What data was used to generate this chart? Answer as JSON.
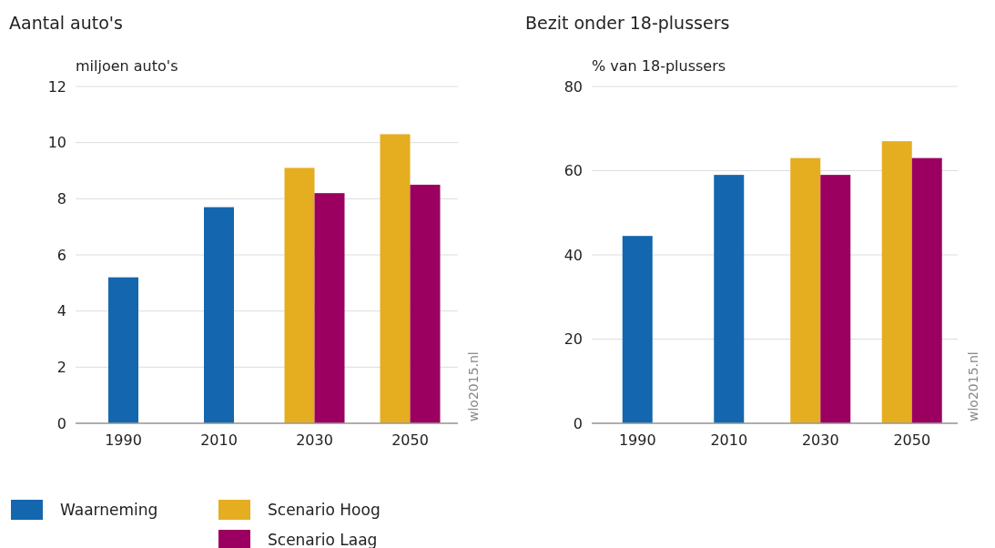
{
  "chart_data": [
    {
      "type": "bar",
      "title": "Aantal auto's",
      "ylabel": "miljoen auto's",
      "categories": [
        "1990",
        "2010",
        "2030",
        "2050"
      ],
      "ylim": [
        0,
        12
      ],
      "yticks": [
        0,
        2,
        4,
        6,
        8,
        10,
        12
      ],
      "grid": "y",
      "legend": "bottom",
      "annotations": [
        "wlo2015.nl"
      ],
      "series": [
        {
          "name": "Waarneming",
          "color": "#1467ae",
          "values": [
            5.2,
            7.7,
            null,
            null
          ]
        },
        {
          "name": "Scenario Hoog",
          "color": "#e5ad20",
          "values": [
            null,
            null,
            9.1,
            10.3
          ]
        },
        {
          "name": "Scenario Laag",
          "color": "#9b0061",
          "values": [
            null,
            null,
            8.2,
            8.5
          ]
        }
      ]
    },
    {
      "type": "bar",
      "title": "Bezit onder 18-plussers",
      "ylabel": "% van 18-plussers",
      "categories": [
        "1990",
        "2010",
        "2030",
        "2050"
      ],
      "ylim": [
        0,
        80
      ],
      "yticks": [
        0,
        20,
        40,
        60,
        80
      ],
      "grid": "y",
      "legend": "bottom",
      "annotations": [
        "wlo2015.nl"
      ],
      "series": [
        {
          "name": "Waarneming",
          "color": "#1467ae",
          "values": [
            44.5,
            59,
            null,
            null
          ]
        },
        {
          "name": "Scenario Hoog",
          "color": "#e5ad20",
          "values": [
            null,
            null,
            63,
            67
          ]
        },
        {
          "name": "Scenario Laag",
          "color": "#9b0061",
          "values": [
            null,
            null,
            59,
            63
          ]
        }
      ]
    }
  ]
}
